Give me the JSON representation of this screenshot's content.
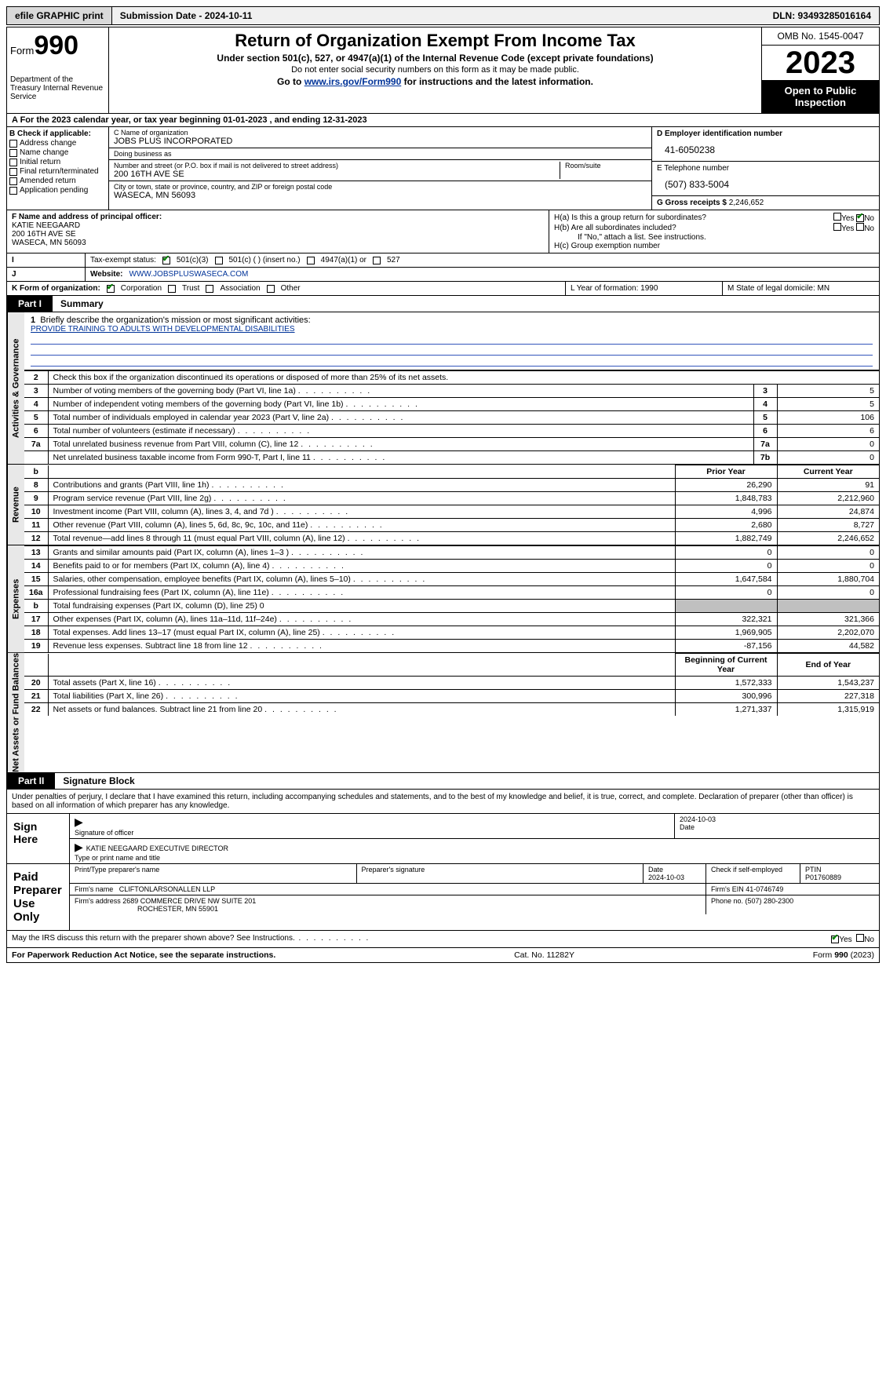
{
  "topbar": {
    "efile": "efile GRAPHIC print",
    "submission": "Submission Date - 2024-10-11",
    "dln": "DLN: 93493285016164"
  },
  "header": {
    "form_label": "Form",
    "form_number": "990",
    "dept": "Department of the Treasury Internal Revenue Service",
    "title": "Return of Organization Exempt From Income Tax",
    "sub1": "Under section 501(c), 527, or 4947(a)(1) of the Internal Revenue Code (except private foundations)",
    "sub2": "Do not enter social security numbers on this form as it may be made public.",
    "sub3_pre": "Go to ",
    "sub3_link": "www.irs.gov/Form990",
    "sub3_post": " for instructions and the latest information.",
    "omb": "OMB No. 1545-0047",
    "year": "2023",
    "open": "Open to Public Inspection"
  },
  "row_a": "A For the 2023 calendar year, or tax year beginning 01-01-2023    , and ending 12-31-2023",
  "col_b": {
    "header": "B Check if applicable:",
    "items": [
      "Address change",
      "Name change",
      "Initial return",
      "Final return/terminated",
      "Amended return",
      "Application pending"
    ]
  },
  "col_c": {
    "name_label": "C Name of organization",
    "name": "JOBS PLUS INCORPORATED",
    "dba_label": "Doing business as",
    "dba": "",
    "street_label": "Number and street (or P.O. box if mail is not delivered to street address)",
    "room_label": "Room/suite",
    "street": "200 16TH AVE SE",
    "city_label": "City or town, state or province, country, and ZIP or foreign postal code",
    "city": "WASECA, MN  56093"
  },
  "col_d": {
    "ein_label": "D Employer identification number",
    "ein": "41-6050238",
    "phone_label": "E Telephone number",
    "phone": "(507) 833-5004",
    "gross_label": "G Gross receipts $ ",
    "gross": "2,246,652"
  },
  "col_f": {
    "label": "F  Name and address of principal officer:",
    "name": "KATIE NEEGAARD",
    "street": "200 16TH AVE SE",
    "city": "WASECA, MN  56093"
  },
  "col_h": {
    "ha": "H(a)  Is this a group return for subordinates?",
    "hb": "H(b)  Are all subordinates included?",
    "hb_note": "If \"No,\" attach a list. See instructions.",
    "hc": "H(c)  Group exemption number "
  },
  "row_i": {
    "label": "Tax-exempt status:",
    "opts": [
      "501(c)(3)",
      "501(c) (  ) (insert no.)",
      "4947(a)(1) or",
      "527"
    ]
  },
  "row_j": {
    "label": "Website: ",
    "value": "WWW.JOBSPLUSWASECA.COM"
  },
  "row_k": {
    "label": "K Form of organization:",
    "opts": [
      "Corporation",
      "Trust",
      "Association",
      "Other"
    ],
    "l": "L Year of formation: 1990",
    "m": "M State of legal domicile: MN"
  },
  "part1": {
    "tab": "Part I",
    "title": "Summary",
    "mission_label": "Briefly describe the organization's mission or most significant activities:",
    "mission": "PROVIDE TRAINING TO ADULTS WITH DEVELOPMENTAL DISABILITIES",
    "line2": "Check this box      if the organization discontinued its operations or disposed of more than 25% of its net assets."
  },
  "governance_rows": [
    {
      "n": "3",
      "desc": "Number of voting members of the governing body (Part VI, line 1a)",
      "ref": "3",
      "val": "5"
    },
    {
      "n": "4",
      "desc": "Number of independent voting members of the governing body (Part VI, line 1b)",
      "ref": "4",
      "val": "5"
    },
    {
      "n": "5",
      "desc": "Total number of individuals employed in calendar year 2023 (Part V, line 2a)",
      "ref": "5",
      "val": "106"
    },
    {
      "n": "6",
      "desc": "Total number of volunteers (estimate if necessary)",
      "ref": "6",
      "val": "6"
    },
    {
      "n": "7a",
      "desc": "Total unrelated business revenue from Part VIII, column (C), line 12",
      "ref": "7a",
      "val": "0"
    },
    {
      "n": "",
      "desc": "Net unrelated business taxable income from Form 990-T, Part I, line 11",
      "ref": "7b",
      "val": "0"
    }
  ],
  "revenue_header": {
    "prior": "Prior Year",
    "current": "Current Year"
  },
  "revenue_rows": [
    {
      "n": "8",
      "desc": "Contributions and grants (Part VIII, line 1h)",
      "prior": "26,290",
      "current": "91"
    },
    {
      "n": "9",
      "desc": "Program service revenue (Part VIII, line 2g)",
      "prior": "1,848,783",
      "current": "2,212,960"
    },
    {
      "n": "10",
      "desc": "Investment income (Part VIII, column (A), lines 3, 4, and 7d )",
      "prior": "4,996",
      "current": "24,874"
    },
    {
      "n": "11",
      "desc": "Other revenue (Part VIII, column (A), lines 5, 6d, 8c, 9c, 10c, and 11e)",
      "prior": "2,680",
      "current": "8,727"
    },
    {
      "n": "12",
      "desc": "Total revenue—add lines 8 through 11 (must equal Part VIII, column (A), line 12)",
      "prior": "1,882,749",
      "current": "2,246,652"
    }
  ],
  "expense_rows": [
    {
      "n": "13",
      "desc": "Grants and similar amounts paid (Part IX, column (A), lines 1–3 )",
      "prior": "0",
      "current": "0"
    },
    {
      "n": "14",
      "desc": "Benefits paid to or for members (Part IX, column (A), line 4)",
      "prior": "0",
      "current": "0"
    },
    {
      "n": "15",
      "desc": "Salaries, other compensation, employee benefits (Part IX, column (A), lines 5–10)",
      "prior": "1,647,584",
      "current": "1,880,704"
    },
    {
      "n": "16a",
      "desc": "Professional fundraising fees (Part IX, column (A), line 11e)",
      "prior": "0",
      "current": "0"
    },
    {
      "n": "b",
      "desc": "Total fundraising expenses (Part IX, column (D), line 25) 0",
      "prior": "",
      "current": "",
      "shaded": true
    },
    {
      "n": "17",
      "desc": "Other expenses (Part IX, column (A), lines 11a–11d, 11f–24e)",
      "prior": "322,321",
      "current": "321,366"
    },
    {
      "n": "18",
      "desc": "Total expenses. Add lines 13–17 (must equal Part IX, column (A), line 25)",
      "prior": "1,969,905",
      "current": "2,202,070"
    },
    {
      "n": "19",
      "desc": "Revenue less expenses. Subtract line 18 from line 12",
      "prior": "-87,156",
      "current": "44,582"
    }
  ],
  "netassets_header": {
    "prior": "Beginning of Current Year",
    "current": "End of Year"
  },
  "netassets_rows": [
    {
      "n": "20",
      "desc": "Total assets (Part X, line 16)",
      "prior": "1,572,333",
      "current": "1,543,237"
    },
    {
      "n": "21",
      "desc": "Total liabilities (Part X, line 26)",
      "prior": "300,996",
      "current": "227,318"
    },
    {
      "n": "22",
      "desc": "Net assets or fund balances. Subtract line 21 from line 20",
      "prior": "1,271,337",
      "current": "1,315,919"
    }
  ],
  "vlabels": {
    "gov": "Activities & Governance",
    "rev": "Revenue",
    "exp": "Expenses",
    "net": "Net Assets or Fund Balances"
  },
  "part2": {
    "tab": "Part II",
    "title": "Signature Block",
    "decl": "Under penalties of perjury, I declare that I have examined this return, including accompanying schedules and statements, and to the best of my knowledge and belief, it is true, correct, and complete. Declaration of preparer (other than officer) is based on all information of which preparer has any knowledge."
  },
  "sign": {
    "left": "Sign Here",
    "sig_label": "Signature of officer",
    "date_label": "Date",
    "date": "2024-10-03",
    "officer": "KATIE NEEGAARD  EXECUTIVE DIRECTOR",
    "type_label": "Type or print name and title"
  },
  "preparer": {
    "left": "Paid Preparer Use Only",
    "name_label": "Print/Type preparer's name",
    "sig_label": "Preparer's signature",
    "date_label": "Date",
    "date": "2024-10-03",
    "check_label": "Check         if self-employed",
    "ptin_label": "PTIN",
    "ptin": "P01760889",
    "firm_name_label": "Firm's name   ",
    "firm_name": "CLIFTONLARSONALLEN LLP",
    "firm_ein_label": "Firm's EIN ",
    "firm_ein": "41-0746749",
    "firm_addr_label": "Firm's address ",
    "firm_addr1": "2689 COMMERCE DRIVE NW SUITE 201",
    "firm_addr2": "ROCHESTER, MN  55901",
    "phone_label": "Phone no. ",
    "phone": "(507) 280-2300"
  },
  "discuss": "May the IRS discuss this return with the preparer shown above? See Instructions.",
  "footer": {
    "left": "For Paperwork Reduction Act Notice, see the separate instructions.",
    "center": "Cat. No. 11282Y",
    "right_pre": "Form ",
    "right_form": "990",
    "right_post": " (2023)"
  },
  "colors": {
    "link": "#003399",
    "check_green": "#008000",
    "shaded": "#c0c0c0"
  }
}
